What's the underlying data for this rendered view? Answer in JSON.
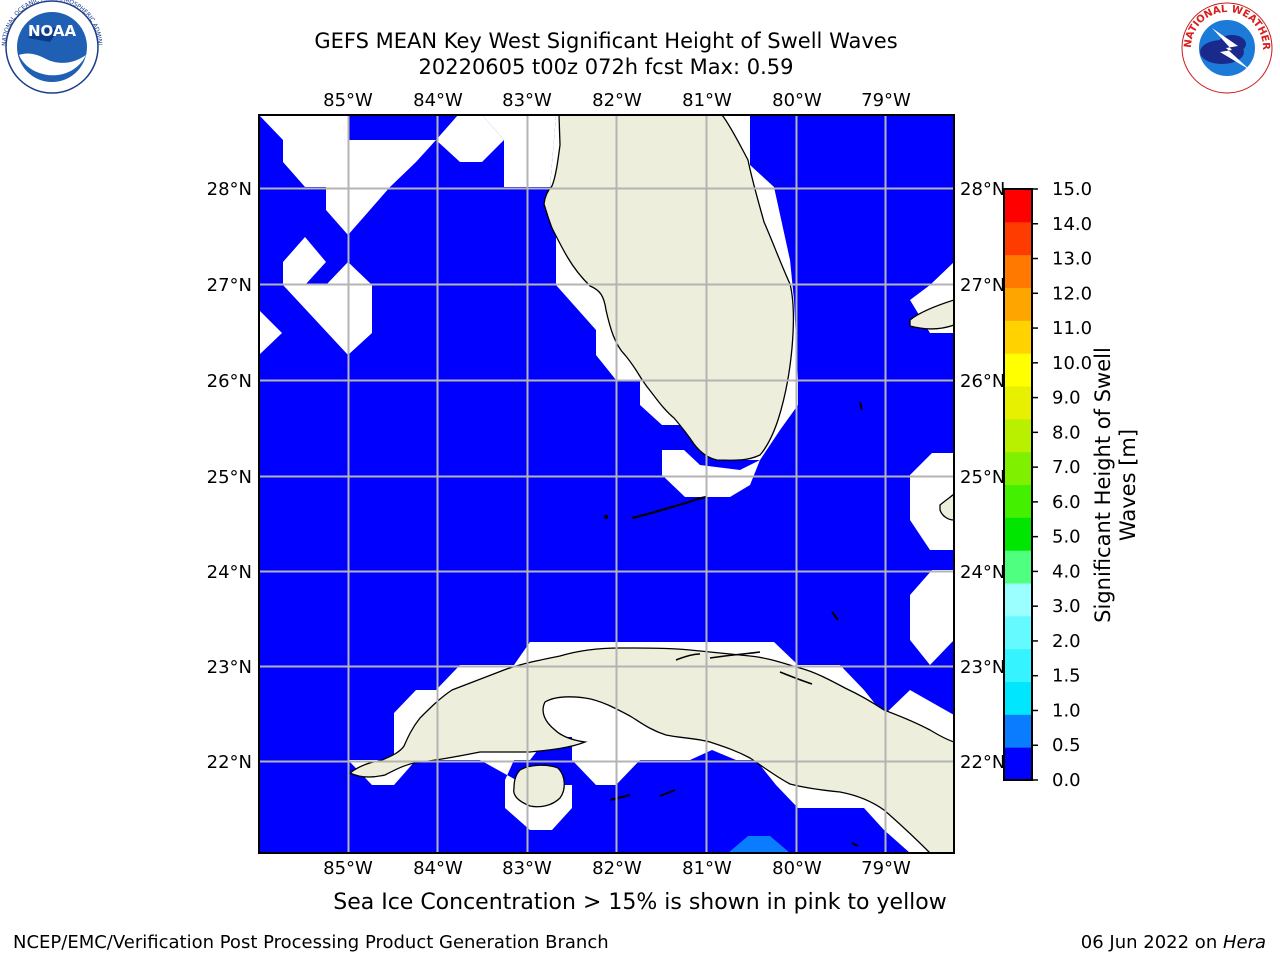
{
  "title_line1": "GEFS MEAN Key West Significant Height of Swell Waves",
  "title_line2": "20220605 t00z 072h fcst   Max: 0.59",
  "lon_labels": [
    "85°W",
    "84°W",
    "83°W",
    "82°W",
    "81°W",
    "80°W",
    "79°W"
  ],
  "lat_labels": [
    "28°N",
    "27°N",
    "26°N",
    "25°N",
    "24°N",
    "23°N",
    "22°N"
  ],
  "colorbar": {
    "label_line1": "Significant Height of Swell",
    "label_line2": "Waves [m]",
    "ticks": [
      "0.0",
      "0.5",
      "1.0",
      "1.5",
      "2.0",
      "3.0",
      "4.0",
      "5.0",
      "6.0",
      "7.0",
      "8.0",
      "9.0",
      "10.0",
      "11.0",
      "12.0",
      "13.0",
      "14.0",
      "15.0"
    ],
    "colors": [
      "#0000ff",
      "#0a7cff",
      "#00e6ff",
      "#36f4ff",
      "#64faff",
      "#9cffff",
      "#4fff7f",
      "#00e600",
      "#43f000",
      "#7ef000",
      "#b8f000",
      "#e6f000",
      "#ffff00",
      "#ffd200",
      "#ffa500",
      "#ff7800",
      "#ff3c00",
      "#ff0000"
    ]
  },
  "subcaption": "Sea Ice Concentration > 15% is shown in pink to yellow",
  "footer_left": "NCEP/EMC/Verification Post Processing Product Generation Branch",
  "footer_date": "06 Jun 2022 on ",
  "footer_host": "Hera",
  "logos": {
    "noaa": "NOAA",
    "nws": "NATIONAL WEATHER SERVICE",
    "noaa_ring": "NATIONAL OCEANIC AND ATMOSPHERIC ADMINISTRATION · U.S. DEPARTMENT OF COMMERCE"
  },
  "colors": {
    "ocean": "#0000ff",
    "land": "#eeeedc",
    "grid": "#b4b4b4"
  }
}
